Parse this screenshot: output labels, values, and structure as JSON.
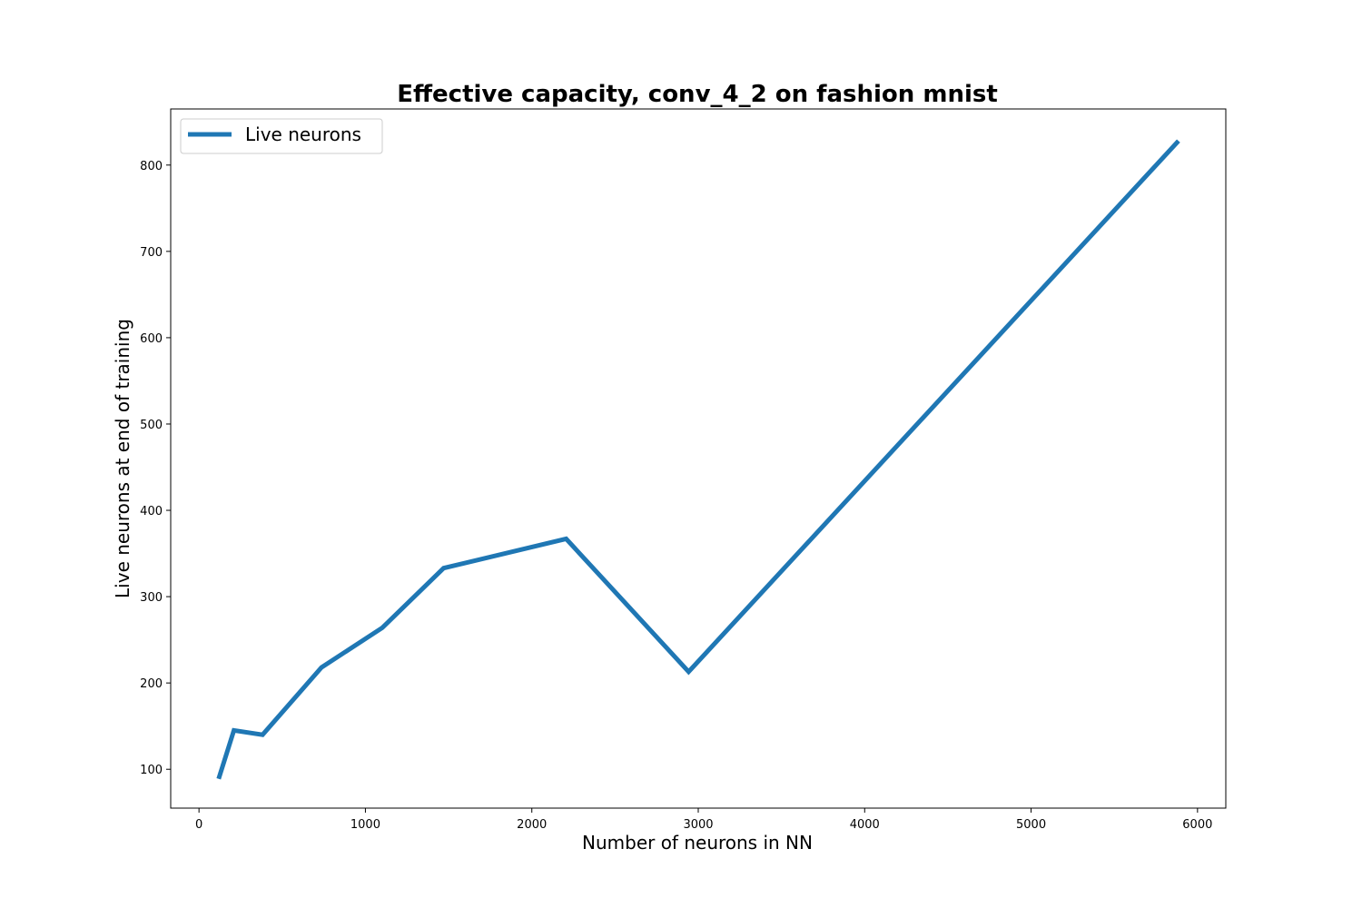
{
  "chart_data": {
    "type": "line",
    "title": "Effective capacity, conv_4_2 on fashion mnist",
    "xlabel": "Number of neurons in NN",
    "ylabel": "Live neurons at end of training",
    "xlim": [
      -170,
      6170
    ],
    "ylim": [
      55,
      865
    ],
    "xticks": [
      0,
      1000,
      2000,
      3000,
      4000,
      5000,
      6000
    ],
    "yticks": [
      100,
      200,
      300,
      400,
      500,
      600,
      700,
      800
    ],
    "grid": false,
    "legend": "top-left",
    "series": [
      {
        "name": "Live neurons",
        "color": "#1f77b4",
        "x": [
          118,
          210,
          382,
          736,
          1102,
          1470,
          2206,
          2942,
          5886
        ],
        "y": [
          89,
          145,
          140,
          218,
          264,
          333,
          367,
          213,
          828
        ]
      }
    ]
  }
}
